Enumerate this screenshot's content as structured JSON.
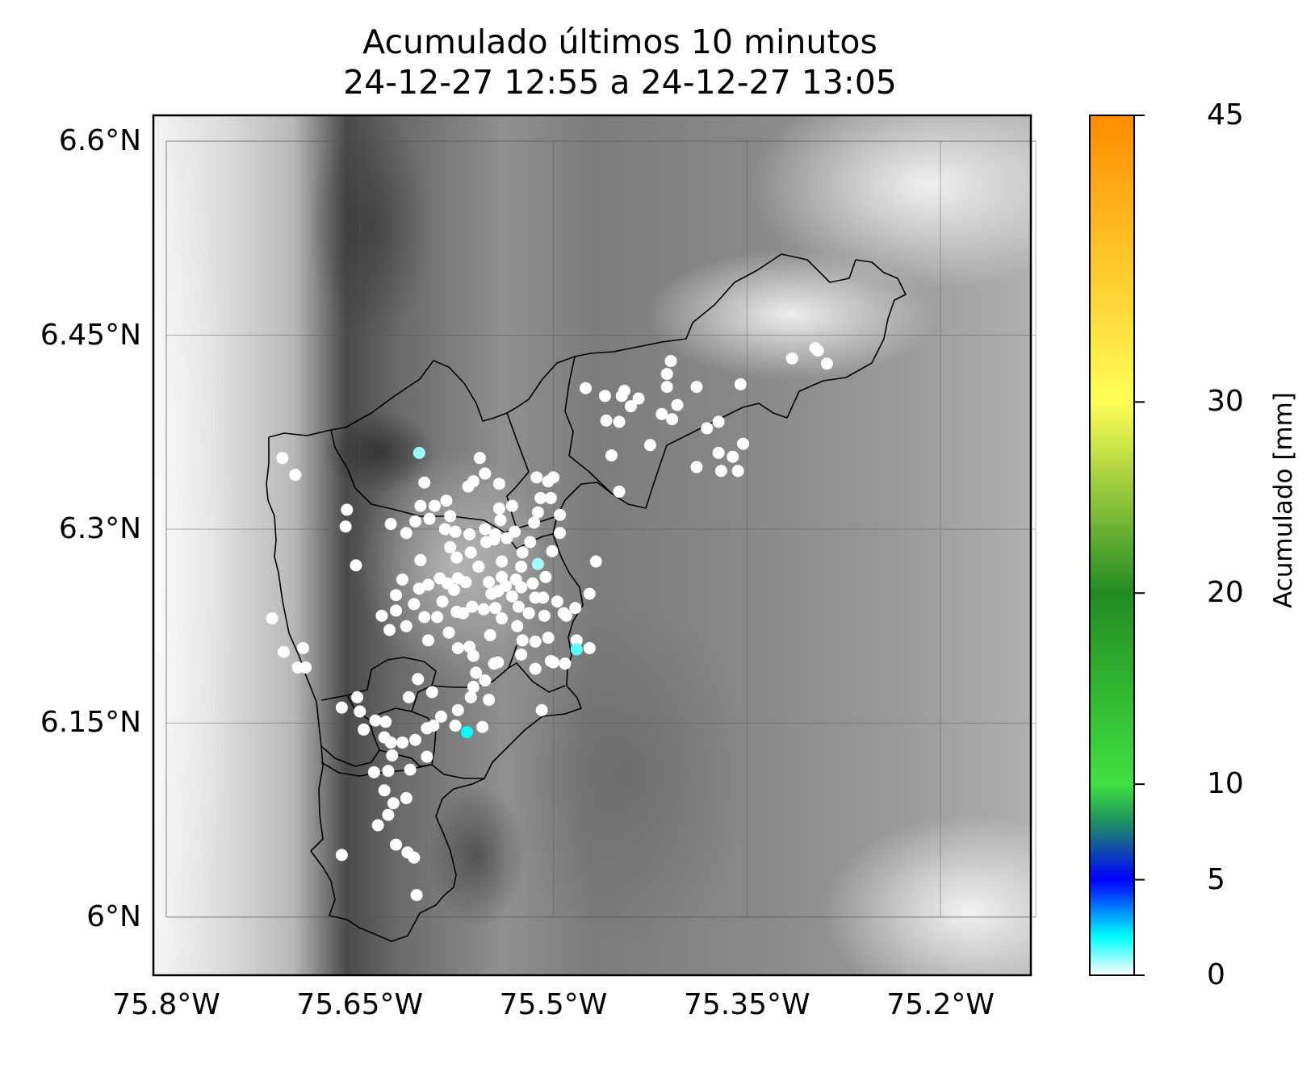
{
  "title": [
    "Acumulado últimos 10 minutos",
    "24-12-27 12:55 a 24-12-27 13:05"
  ],
  "map": {
    "lon_range": [
      -75.81,
      -75.13
    ],
    "lat_range": [
      5.955,
      6.62
    ],
    "x_ticks": [
      {
        "value": -75.8,
        "label": "75.8°W"
      },
      {
        "value": -75.65,
        "label": "75.65°W"
      },
      {
        "value": -75.5,
        "label": "75.5°W"
      },
      {
        "value": -75.35,
        "label": "75.35°W"
      },
      {
        "value": -75.2,
        "label": "75.2°W"
      }
    ],
    "y_ticks": [
      {
        "value": 6.6,
        "label": "6.6°N"
      },
      {
        "value": 6.45,
        "label": "6.45°N"
      },
      {
        "value": 6.3,
        "label": "6.3°N"
      },
      {
        "value": 6.15,
        "label": "6.15°N"
      },
      {
        "value": 6.0,
        "label": "6°N"
      }
    ],
    "gridlines": true,
    "basemap": "grayscale terrain elevation",
    "boundaries": "municipal borders (black outline)"
  },
  "colorbar": {
    "label": "Acumulado [mm]",
    "range": [
      0,
      45
    ],
    "ticks": [
      {
        "value": 0,
        "label": "0"
      },
      {
        "value": 5,
        "label": "5"
      },
      {
        "value": 10,
        "label": "10"
      },
      {
        "value": 20,
        "label": "20"
      },
      {
        "value": 30,
        "label": "30"
      },
      {
        "value": 45,
        "label": "45"
      }
    ],
    "stops": [
      {
        "value": 0,
        "color": "#ffffff"
      },
      {
        "value": 2,
        "color": "#00ffff"
      },
      {
        "value": 5,
        "color": "#0000ff"
      },
      {
        "value": 8,
        "color": "#1f9060"
      },
      {
        "value": 10,
        "color": "#40e040"
      },
      {
        "value": 20,
        "color": "#228b22"
      },
      {
        "value": 30,
        "color": "#ffff55"
      },
      {
        "value": 45,
        "color": "#ff8c00"
      }
    ]
  },
  "chart_data": {
    "type": "scatter",
    "title": "Acumulado últimos 10 minutos\n24-12-27 12:55 a 24-12-27 13:05",
    "xlabel": "",
    "ylabel": "",
    "xlim": [
      -75.81,
      -75.13
    ],
    "ylim": [
      5.955,
      6.62
    ],
    "colorbar_label": "Acumulado [mm]",
    "colorbar_range": [
      0,
      45
    ],
    "stations": [
      [
        -75.71,
        6.355,
        0
      ],
      [
        -75.7,
        6.342,
        0
      ],
      [
        -75.66,
        6.315,
        0
      ],
      [
        -75.661,
        6.302,
        0
      ],
      [
        -75.626,
        6.304,
        0
      ],
      [
        -75.653,
        6.272,
        0
      ],
      [
        -75.718,
        6.231,
        0
      ],
      [
        -75.709,
        6.205,
        0
      ],
      [
        -75.694,
        6.208,
        0
      ],
      [
        -75.698,
        6.193,
        0
      ],
      [
        -75.692,
        6.193,
        0
      ],
      [
        -75.604,
        6.359,
        0.8
      ],
      [
        -75.6,
        6.336,
        0
      ],
      [
        -75.603,
        6.318,
        0
      ],
      [
        -75.607,
        6.306,
        0
      ],
      [
        -75.614,
        6.297,
        0
      ],
      [
        -75.603,
        6.276,
        0
      ],
      [
        -75.617,
        6.261,
        0
      ],
      [
        -75.622,
        6.249,
        0
      ],
      [
        -75.622,
        6.237,
        0
      ],
      [
        -75.627,
        6.222,
        0
      ],
      [
        -75.633,
        6.233,
        0
      ],
      [
        -75.614,
        6.225,
        0
      ],
      [
        -75.604,
        6.254,
        0
      ],
      [
        -75.608,
        6.242,
        0
      ],
      [
        -75.597,
        6.257,
        0
      ],
      [
        -75.588,
        6.262,
        0
      ],
      [
        -75.586,
        6.244,
        0
      ],
      [
        -75.582,
        6.258,
        0
      ],
      [
        -75.577,
        6.253,
        0
      ],
      [
        -75.575,
        6.236,
        0
      ],
      [
        -75.59,
        6.232,
        0
      ],
      [
        -75.597,
        6.214,
        0
      ],
      [
        -75.6,
        6.232,
        0
      ],
      [
        -75.596,
        6.308,
        0
      ],
      [
        -75.592,
        6.318,
        0
      ],
      [
        -75.583,
        6.322,
        0
      ],
      [
        -75.58,
        6.31,
        0
      ],
      [
        -75.584,
        6.3,
        0
      ],
      [
        -75.576,
        6.298,
        0
      ],
      [
        -75.58,
        6.286,
        0
      ],
      [
        -75.575,
        6.278,
        0
      ],
      [
        -75.564,
        6.282,
        0
      ],
      [
        -75.574,
        6.262,
        0
      ],
      [
        -75.568,
        6.259,
        0
      ],
      [
        -75.563,
        6.24,
        0
      ],
      [
        -75.57,
        6.235,
        0
      ],
      [
        -75.581,
        6.22,
        0
      ],
      [
        -75.574,
        6.208,
        0
      ],
      [
        -75.565,
        6.209,
        0
      ],
      [
        -75.562,
        6.202,
        0
      ],
      [
        -75.56,
        6.189,
        0
      ],
      [
        -75.549,
        6.218,
        0
      ],
      [
        -75.548,
        6.25,
        0
      ],
      [
        -75.554,
        6.238,
        0
      ],
      [
        -75.545,
        6.239,
        0
      ],
      [
        -75.54,
        6.231,
        0
      ],
      [
        -75.55,
        6.259,
        0
      ],
      [
        -75.543,
        6.252,
        0
      ],
      [
        -75.537,
        6.256,
        0
      ],
      [
        -75.529,
        6.261,
        0
      ],
      [
        -75.532,
        6.248,
        0
      ],
      [
        -75.527,
        6.24,
        0
      ],
      [
        -75.524,
        6.282,
        0
      ],
      [
        -75.53,
        6.298,
        0
      ],
      [
        -75.536,
        6.293,
        0
      ],
      [
        -75.545,
        6.296,
        0
      ],
      [
        -75.553,
        6.3,
        0
      ],
      [
        -75.541,
        6.307,
        0
      ],
      [
        -75.532,
        6.318,
        0
      ],
      [
        -75.566,
        6.333,
        0
      ],
      [
        -75.562,
        6.337,
        0
      ],
      [
        -75.553,
        6.343,
        0
      ],
      [
        -75.557,
        6.355,
        0
      ],
      [
        -75.542,
        6.335,
        0
      ],
      [
        -75.542,
        6.316,
        0
      ],
      [
        -75.546,
        6.292,
        0
      ],
      [
        -75.552,
        6.29,
        0
      ],
      [
        -75.558,
        6.271,
        0
      ],
      [
        -75.565,
        6.296,
        0
      ],
      [
        -75.54,
        6.275,
        0
      ],
      [
        -75.54,
        6.263,
        0
      ],
      [
        -75.525,
        6.271,
        0
      ],
      [
        -75.525,
        6.255,
        0
      ],
      [
        -75.514,
        6.247,
        0
      ],
      [
        -75.519,
        6.235,
        0
      ],
      [
        -75.528,
        6.225,
        0
      ],
      [
        -75.524,
        6.214,
        0
      ],
      [
        -75.514,
        6.213,
        0
      ],
      [
        -75.507,
        6.233,
        0
      ],
      [
        -75.508,
        6.247,
        0
      ],
      [
        -75.497,
        6.244,
        0
      ],
      [
        -75.49,
        6.233,
        0
      ],
      [
        -75.5,
        6.197,
        0
      ],
      [
        -75.504,
        6.216,
        0
      ],
      [
        -75.512,
        6.273,
        0.7
      ],
      [
        -75.516,
        6.258,
        0
      ],
      [
        -75.518,
        6.29,
        0
      ],
      [
        -75.515,
        6.305,
        0
      ],
      [
        -75.512,
        6.313,
        0
      ],
      [
        -75.51,
        6.324,
        0
      ],
      [
        -75.513,
        6.34,
        0
      ],
      [
        -75.502,
        6.324,
        0
      ],
      [
        -75.495,
        6.311,
        0
      ],
      [
        -75.495,
        6.297,
        0
      ],
      [
        -75.5,
        6.34,
        0
      ],
      [
        -75.504,
        6.337,
        0
      ],
      [
        -75.501,
        6.283,
        0
      ],
      [
        -75.506,
        6.263,
        0
      ],
      [
        -75.492,
        6.235,
        0
      ],
      [
        -75.482,
        6.214,
        0
      ],
      [
        -75.483,
        6.239,
        0
      ],
      [
        -75.502,
        6.198,
        0
      ],
      [
        -75.472,
        6.25,
        0
      ],
      [
        -75.467,
        6.275,
        0
      ],
      [
        -75.449,
        6.329,
        0
      ],
      [
        -75.455,
        6.357,
        0
      ],
      [
        -75.459,
        6.384,
        0
      ],
      [
        -75.44,
        6.395,
        0
      ],
      [
        -75.449,
        6.383,
        0
      ],
      [
        -75.425,
        6.365,
        0
      ],
      [
        -75.445,
        6.407,
        0
      ],
      [
        -75.416,
        6.389,
        0
      ],
      [
        -75.404,
        6.396,
        0
      ],
      [
        -75.408,
        6.385,
        0
      ],
      [
        -75.389,
        6.348,
        0
      ],
      [
        -75.381,
        6.378,
        0
      ],
      [
        -75.372,
        6.359,
        0
      ],
      [
        -75.372,
        6.383,
        0
      ],
      [
        -75.37,
        6.345,
        0
      ],
      [
        -75.361,
        6.356,
        0
      ],
      [
        -75.357,
        6.345,
        0
      ],
      [
        -75.353,
        6.366,
        0
      ],
      [
        -75.412,
        6.42,
        0
      ],
      [
        -75.409,
        6.43,
        0
      ],
      [
        -75.475,
        6.409,
        0
      ],
      [
        -75.46,
        6.403,
        0
      ],
      [
        -75.447,
        6.403,
        0
      ],
      [
        -75.434,
        6.401,
        0
      ],
      [
        -75.412,
        6.41,
        0
      ],
      [
        -75.389,
        6.41,
        0
      ],
      [
        -75.355,
        6.412,
        0
      ],
      [
        -75.315,
        6.432,
        0
      ],
      [
        -75.297,
        6.44,
        0
      ],
      [
        -75.295,
        6.438,
        0
      ],
      [
        -75.288,
        6.428,
        0
      ],
      [
        -75.472,
        6.208,
        0
      ],
      [
        -75.482,
        6.207,
        1.3
      ],
      [
        -75.491,
        6.196,
        0
      ],
      [
        -75.525,
        6.203,
        0
      ],
      [
        -75.543,
        6.197,
        0
      ],
      [
        -75.546,
        6.196,
        0
      ],
      [
        -75.553,
        6.183,
        0
      ],
      [
        -75.562,
        6.178,
        0
      ],
      [
        -75.55,
        6.168,
        0
      ],
      [
        -75.564,
        6.17,
        0
      ],
      [
        -75.574,
        6.16,
        0
      ],
      [
        -75.587,
        6.155,
        0
      ],
      [
        -75.594,
        6.174,
        0
      ],
      [
        -75.605,
        6.184,
        0
      ],
      [
        -75.612,
        6.17,
        0
      ],
      [
        -75.63,
        6.151,
        0
      ],
      [
        -75.638,
        6.152,
        0
      ],
      [
        -75.65,
        6.159,
        0
      ],
      [
        -75.664,
        6.162,
        0
      ],
      [
        -75.652,
        6.17,
        0
      ],
      [
        -75.647,
        6.145,
        0
      ],
      [
        -75.631,
        6.139,
        0
      ],
      [
        -75.626,
        6.135,
        0
      ],
      [
        -75.625,
        6.125,
        0
      ],
      [
        -75.607,
        6.137,
        0
      ],
      [
        -75.617,
        6.135,
        0
      ],
      [
        -75.598,
        6.146,
        0
      ],
      [
        -75.593,
        6.148,
        0
      ],
      [
        -75.598,
        6.124,
        0
      ],
      [
        -75.611,
        6.114,
        0
      ],
      [
        -75.628,
        6.113,
        0
      ],
      [
        -75.639,
        6.112,
        0
      ],
      [
        -75.631,
        6.098,
        0
      ],
      [
        -75.624,
        6.088,
        0
      ],
      [
        -75.614,
        6.092,
        0
      ],
      [
        -75.628,
        6.079,
        0
      ],
      [
        -75.636,
        6.071,
        0
      ],
      [
        -75.622,
        6.056,
        0
      ],
      [
        -75.613,
        6.05,
        0
      ],
      [
        -75.608,
        6.046,
        0
      ],
      [
        -75.606,
        6.017,
        0
      ],
      [
        -75.664,
        6.048,
        0
      ],
      [
        -75.576,
        6.148,
        0
      ],
      [
        -75.567,
        6.143,
        2.0
      ],
      [
        -75.555,
        6.147,
        0
      ],
      [
        -75.514,
        6.192,
        0
      ],
      [
        -75.509,
        6.16,
        0
      ]
    ]
  }
}
